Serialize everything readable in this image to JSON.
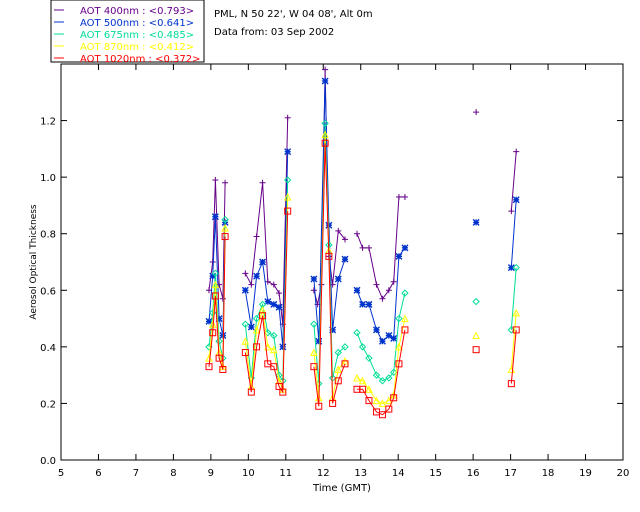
{
  "chart_data": {
    "type": "line",
    "title_lines": [
      "PML, N 50 22', W 04 08', Alt 0m",
      "Data from: 03 Sep 2002"
    ],
    "xlabel": "Time (GMT)",
    "ylabel": "Aerosol Optical Thickness",
    "xlim": [
      5,
      20
    ],
    "ylim": [
      0,
      1.4
    ],
    "xticks": [
      5,
      6,
      7,
      8,
      9,
      10,
      11,
      12,
      13,
      14,
      15,
      16,
      17,
      18,
      19,
      20
    ],
    "yticks": [
      0.0,
      0.2,
      0.4,
      0.6,
      0.8,
      1.0,
      1.2
    ],
    "ytick_labels": [
      "0.0",
      "0.2",
      "0.4",
      "0.6",
      "0.8",
      "1.0",
      "1.2"
    ],
    "grid": false,
    "legend_position": "top-left",
    "series": [
      {
        "name": "AOT 400nm : <0.793>",
        "color": "#660088",
        "marker": "plus",
        "segments": [
          [
            [
              8.95,
              0.6
            ],
            [
              9.05,
              0.7
            ],
            [
              9.12,
              0.99
            ],
            [
              9.22,
              0.62
            ],
            [
              9.32,
              0.57
            ],
            [
              9.38,
              0.98
            ]
          ],
          [
            [
              9.92,
              0.66
            ],
            [
              10.08,
              0.62
            ],
            [
              10.22,
              0.79
            ],
            [
              10.38,
              0.98
            ],
            [
              10.52,
              0.63
            ],
            [
              10.68,
              0.62
            ],
            [
              10.82,
              0.59
            ],
            [
              10.92,
              0.48
            ],
            [
              11.05,
              1.21
            ]
          ],
          [
            [
              11.75,
              0.6
            ],
            [
              11.85,
              0.55
            ],
            [
              11.95,
              0.62
            ],
            [
              12.05,
              1.38
            ],
            [
              12.15,
              0.72
            ],
            [
              12.25,
              0.62
            ],
            [
              12.4,
              0.81
            ],
            [
              12.58,
              0.78
            ]
          ],
          [
            [
              12.9,
              0.8
            ],
            [
              13.05,
              0.75
            ],
            [
              13.22,
              0.75
            ],
            [
              13.42,
              0.62
            ],
            [
              13.58,
              0.57
            ],
            [
              13.75,
              0.6
            ],
            [
              13.88,
              0.63
            ],
            [
              14.02,
              0.93
            ],
            [
              14.18,
              0.93
            ]
          ],
          [
            [
              16.08,
              1.23
            ]
          ],
          [
            [
              17.02,
              0.88
            ],
            [
              17.15,
              1.09
            ]
          ]
        ]
      },
      {
        "name": "AOT 500nm : <0.641>",
        "color": "#0033cc",
        "marker": "star",
        "segments": [
          [
            [
              8.95,
              0.49
            ],
            [
              9.05,
              0.65
            ],
            [
              9.12,
              0.86
            ],
            [
              9.22,
              0.5
            ],
            [
              9.32,
              0.44
            ],
            [
              9.38,
              0.84
            ]
          ],
          [
            [
              9.92,
              0.6
            ],
            [
              10.08,
              0.47
            ],
            [
              10.22,
              0.65
            ],
            [
              10.38,
              0.7
            ],
            [
              10.52,
              0.56
            ],
            [
              10.68,
              0.55
            ],
            [
              10.82,
              0.54
            ],
            [
              10.92,
              0.4
            ],
            [
              11.05,
              1.09
            ]
          ],
          [
            [
              11.75,
              0.64
            ],
            [
              11.88,
              0.42
            ],
            [
              12.05,
              1.34
            ],
            [
              12.15,
              0.83
            ],
            [
              12.25,
              0.46
            ],
            [
              12.4,
              0.64
            ],
            [
              12.58,
              0.71
            ]
          ],
          [
            [
              12.9,
              0.6
            ],
            [
              13.05,
              0.55
            ],
            [
              13.22,
              0.55
            ],
            [
              13.42,
              0.46
            ],
            [
              13.58,
              0.42
            ],
            [
              13.75,
              0.44
            ],
            [
              13.88,
              0.43
            ],
            [
              14.02,
              0.72
            ],
            [
              14.18,
              0.75
            ]
          ],
          [
            [
              16.08,
              0.84
            ]
          ],
          [
            [
              17.02,
              0.68
            ],
            [
              17.15,
              0.92
            ]
          ]
        ]
      },
      {
        "name": "AOT 675nm : <0.485>",
        "color": "#00dd99",
        "marker": "diamond",
        "segments": [
          [
            [
              8.95,
              0.4
            ],
            [
              9.05,
              0.52
            ],
            [
              9.12,
              0.66
            ],
            [
              9.22,
              0.42
            ],
            [
              9.32,
              0.36
            ],
            [
              9.38,
              0.85
            ]
          ],
          [
            [
              9.92,
              0.48
            ],
            [
              10.08,
              0.29
            ],
            [
              10.22,
              0.5
            ],
            [
              10.38,
              0.55
            ],
            [
              10.52,
              0.45
            ],
            [
              10.68,
              0.44
            ],
            [
              10.82,
              0.3
            ],
            [
              10.92,
              0.28
            ],
            [
              11.05,
              0.99
            ]
          ],
          [
            [
              11.75,
              0.48
            ],
            [
              11.88,
              0.27
            ],
            [
              12.05,
              1.19
            ],
            [
              12.15,
              0.76
            ],
            [
              12.25,
              0.29
            ],
            [
              12.4,
              0.38
            ],
            [
              12.58,
              0.4
            ]
          ],
          [
            [
              12.9,
              0.45
            ],
            [
              13.05,
              0.4
            ],
            [
              13.22,
              0.36
            ],
            [
              13.42,
              0.3
            ],
            [
              13.58,
              0.28
            ],
            [
              13.75,
              0.29
            ],
            [
              13.88,
              0.31
            ],
            [
              14.02,
              0.5
            ],
            [
              14.18,
              0.59
            ]
          ],
          [
            [
              16.08,
              0.56
            ]
          ],
          [
            [
              17.02,
              0.46
            ],
            [
              17.15,
              0.68
            ]
          ]
        ]
      },
      {
        "name": "AOT 870nm : <0.412>",
        "color": "#ffff00",
        "marker": "triangle",
        "segments": [
          [
            [
              8.95,
              0.36
            ],
            [
              9.05,
              0.48
            ],
            [
              9.12,
              0.62
            ],
            [
              9.22,
              0.38
            ],
            [
              9.32,
              0.33
            ],
            [
              9.38,
              0.82
            ]
          ],
          [
            [
              9.92,
              0.42
            ],
            [
              10.08,
              0.26
            ],
            [
              10.22,
              0.46
            ],
            [
              10.38,
              0.53
            ],
            [
              10.52,
              0.4
            ],
            [
              10.68,
              0.39
            ],
            [
              10.82,
              0.28
            ],
            [
              10.92,
              0.25
            ],
            [
              11.05,
              0.93
            ]
          ],
          [
            [
              11.75,
              0.38
            ],
            [
              11.88,
              0.22
            ],
            [
              12.05,
              1.15
            ],
            [
              12.15,
              0.74
            ],
            [
              12.25,
              0.22
            ],
            [
              12.4,
              0.32
            ],
            [
              12.58,
              0.35
            ]
          ],
          [
            [
              12.9,
              0.29
            ],
            [
              13.05,
              0.28
            ],
            [
              13.22,
              0.25
            ],
            [
              13.42,
              0.21
            ],
            [
              13.58,
              0.2
            ],
            [
              13.75,
              0.21
            ],
            [
              13.88,
              0.23
            ],
            [
              14.02,
              0.4
            ],
            [
              14.18,
              0.5
            ]
          ],
          [
            [
              16.08,
              0.44
            ]
          ],
          [
            [
              17.02,
              0.32
            ],
            [
              17.15,
              0.52
            ]
          ]
        ]
      },
      {
        "name": "AOT 1020nm : <0.372>",
        "color": "#ff0000",
        "marker": "square",
        "segments": [
          [
            [
              8.95,
              0.33
            ],
            [
              9.05,
              0.45
            ],
            [
              9.12,
              0.58
            ],
            [
              9.22,
              0.36
            ],
            [
              9.32,
              0.32
            ],
            [
              9.38,
              0.79
            ]
          ],
          [
            [
              9.92,
              0.38
            ],
            [
              10.08,
              0.24
            ],
            [
              10.22,
              0.4
            ],
            [
              10.38,
              0.51
            ],
            [
              10.52,
              0.34
            ],
            [
              10.68,
              0.33
            ],
            [
              10.82,
              0.26
            ],
            [
              10.92,
              0.24
            ],
            [
              11.05,
              0.88
            ]
          ],
          [
            [
              11.75,
              0.33
            ],
            [
              11.88,
              0.19
            ],
            [
              12.05,
              1.12
            ],
            [
              12.15,
              0.72
            ],
            [
              12.25,
              0.2
            ],
            [
              12.4,
              0.28
            ],
            [
              12.58,
              0.34
            ]
          ],
          [
            [
              12.9,
              0.25
            ],
            [
              13.05,
              0.25
            ],
            [
              13.22,
              0.21
            ],
            [
              13.42,
              0.17
            ],
            [
              13.58,
              0.16
            ],
            [
              13.75,
              0.18
            ],
            [
              13.88,
              0.22
            ],
            [
              14.02,
              0.34
            ],
            [
              14.18,
              0.46
            ]
          ],
          [
            [
              16.08,
              0.39
            ]
          ],
          [
            [
              17.02,
              0.27
            ],
            [
              17.15,
              0.46
            ]
          ]
        ]
      }
    ]
  }
}
